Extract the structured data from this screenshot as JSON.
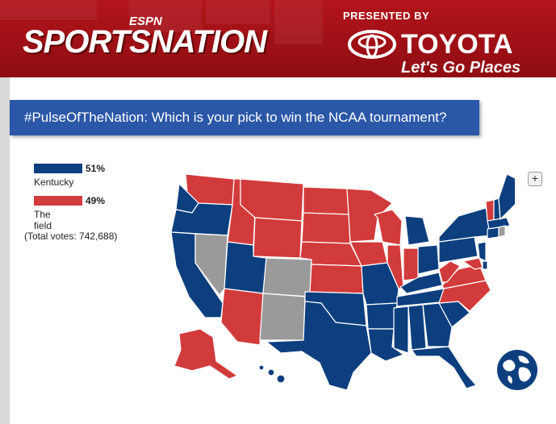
{
  "header": {
    "espn_label": "ESPN",
    "brand": "SPORTSNATION",
    "presented_by": "PRESENTED BY",
    "sponsor": "TOYOTA",
    "tagline": "Let's Go Places"
  },
  "question": "#PulseOfTheNation: Which is your pick to win the NCAA tournament?",
  "legend": [
    {
      "label": "Kentucky",
      "percent": "51%",
      "color": "#0d3f7f"
    },
    {
      "label": "The field",
      "percent": "49%",
      "color": "#d23b3b"
    }
  ],
  "total_votes": "(Total votes: 742,688)",
  "map": {
    "colors": {
      "kentucky": "#0d3f7f",
      "field": "#d23b3b",
      "no_data": "#9a9a9a"
    },
    "zoom_label": "+",
    "states_kentucky": [
      "WA-coast",
      "OR",
      "CA",
      "UT",
      "LA",
      "TX",
      "OK",
      "AR",
      "MO",
      "MS",
      "AL",
      "GA",
      "FL",
      "SC",
      "TN",
      "KY",
      "OH",
      "MI",
      "IN-none",
      "PA",
      "NY",
      "NJ",
      "ME",
      "MA",
      "CT",
      "DE",
      "HI"
    ],
    "states_field": [
      "WA",
      "ID",
      "MT",
      "WY",
      "ND",
      "SD",
      "NE",
      "KS",
      "MN",
      "WI",
      "IL",
      "IA",
      "IN",
      "WV",
      "VA",
      "NC",
      "AZ",
      "AK",
      "VT",
      "MD"
    ],
    "states_no_data": [
      "NV",
      "CO",
      "NM",
      "RI"
    ]
  }
}
